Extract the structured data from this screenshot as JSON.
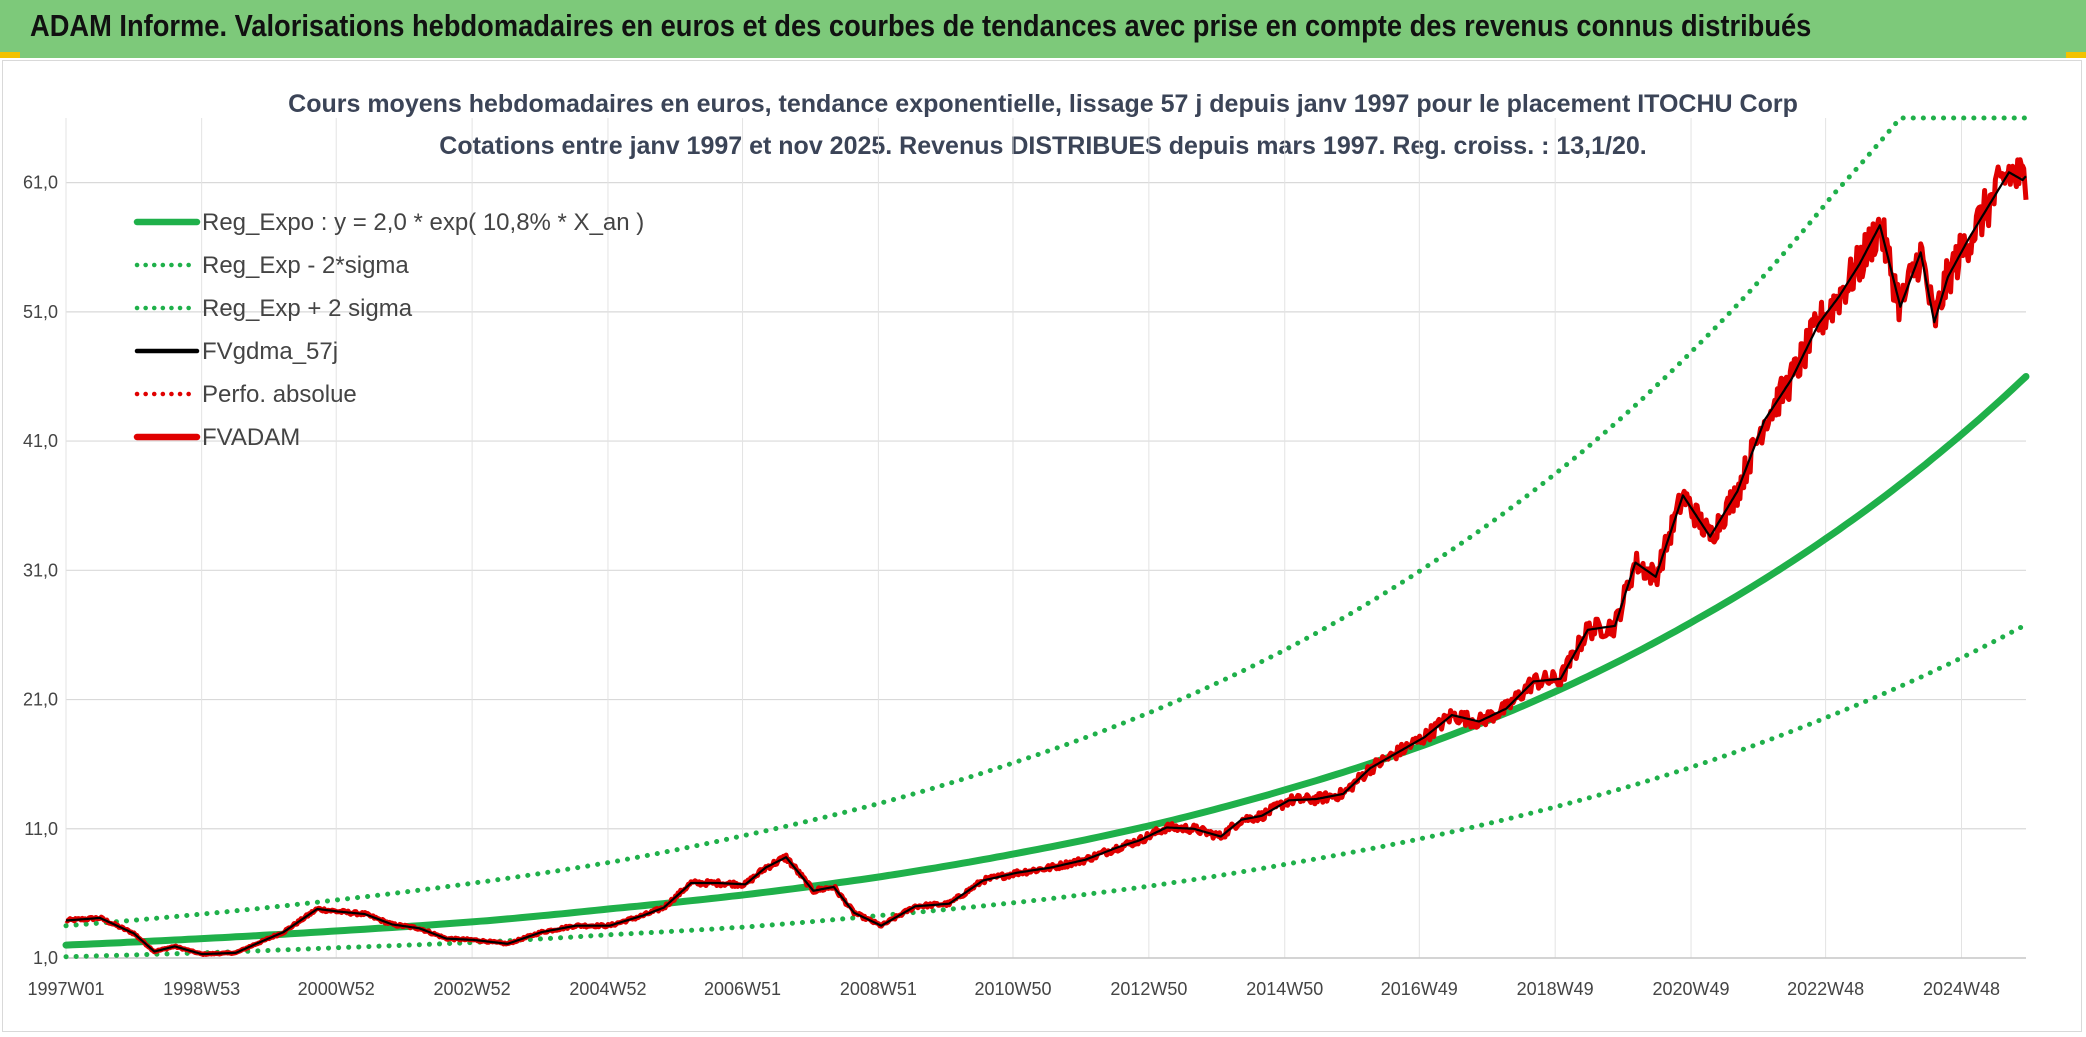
{
  "header": {
    "title": "ADAM Informe. Valorisations hebdomadaires en euros et des courbes de tendances avec prise en compte des revenus connus distribués",
    "background": "#7dc97a"
  },
  "chart_data": {
    "type": "line",
    "title_line1": "Cours moyens hebdomadaires en euros, tendance exponentielle, lissage 57 j depuis janv 1997 pour le placement ITOCHU Corp",
    "title_line2": "Cotations entre janv 1997 et nov 2025. Revenus DISTRIBUES depuis mars 1997. Reg. croiss. : 13,1/20.",
    "xlabel": "",
    "ylabel": "",
    "x_range": [
      1997.0,
      2025.85
    ],
    "ylim": [
      1.0,
      66.0
    ],
    "y_ticks": [
      "1,0",
      "11,0",
      "21,0",
      "31,0",
      "41,0",
      "51,0",
      "61,0"
    ],
    "x_ticks": [
      "1997W01",
      "1998W53",
      "2000W52",
      "2002W52",
      "2004W52",
      "2006W51",
      "2008W51",
      "2010W50",
      "2012W50",
      "2014W50",
      "2016W49",
      "2018W49",
      "2020W49",
      "2022W48",
      "2024W48"
    ],
    "grid": true,
    "legend_position": "top-left",
    "legend": [
      {
        "label": "Reg_Expo : y = 2,0 * exp( 10,8% *  X_an )",
        "color": "#1fb04a",
        "style": "solid-thick"
      },
      {
        "label": "Reg_Exp - 2*sigma",
        "color": "#1fb04a",
        "style": "dotted"
      },
      {
        "label": "Reg_Exp + 2 sigma",
        "color": "#1fb04a",
        "style": "dotted"
      },
      {
        "label": "FVgdma_57j",
        "color": "#000000",
        "style": "solid"
      },
      {
        "label": "Perfo. absolue",
        "color": "#e00000",
        "style": "dotted"
      },
      {
        "label": "FVADAM",
        "color": "#e00000",
        "style": "solid-thick"
      }
    ],
    "series": [
      {
        "name": "Reg_Expo : y = 2,0 * exp( 10,8% *  X_an )",
        "x": [
          1997.0,
          1999.0,
          2001.0,
          2003.0,
          2005.0,
          2007.0,
          2009.0,
          2011.0,
          2013.0,
          2015.0,
          2017.0,
          2019.0,
          2021.0,
          2023.0,
          2025.85
        ],
        "values": [
          2.0,
          2.5,
          3.1,
          3.8,
          4.8,
          5.9,
          7.3,
          9.1,
          11.3,
          14.1,
          17.5,
          21.8,
          27.2,
          33.8,
          46.0
        ]
      },
      {
        "name": "Reg_Exp - 2*sigma",
        "x": [
          1997.0,
          1999.0,
          2001.0,
          2003.0,
          2005.0,
          2007.0,
          2009.0,
          2011.0,
          2013.0,
          2015.0,
          2017.0,
          2019.0,
          2021.0,
          2023.0,
          2025.85
        ],
        "values": [
          1.1,
          1.4,
          1.8,
          2.2,
          2.8,
          3.4,
          4.3,
          5.3,
          6.6,
          8.3,
          10.3,
          12.8,
          15.9,
          19.8,
          26.8
        ]
      },
      {
        "name": "Reg_Exp + 2 sigma",
        "x": [
          1997.0,
          1999.0,
          2001.0,
          2003.0,
          2005.0,
          2007.0,
          2009.0,
          2011.0,
          2013.0,
          2015.0,
          2017.0,
          2019.0,
          2021.0,
          2023.0,
          2024.0,
          2025.85
        ],
        "values": [
          3.5,
          4.4,
          5.5,
          6.8,
          8.4,
          10.5,
          13.0,
          16.2,
          20.1,
          25.0,
          31.2,
          38.8,
          48.3,
          60.0,
          66.0,
          66.0
        ]
      },
      {
        "name": "FVADAM",
        "x": [
          1997.0,
          1997.5,
          1998.0,
          1998.3,
          1998.6,
          1999.0,
          1999.5,
          1999.8,
          2000.2,
          2000.7,
          2001.0,
          2001.4,
          2001.8,
          2002.2,
          2002.6,
          2003.0,
          2003.5,
          2004.0,
          2004.5,
          2005.0,
          2005.5,
          2005.8,
          2006.2,
          2006.6,
          2007.0,
          2007.3,
          2007.6,
          2008.0,
          2008.3,
          2008.6,
          2009.0,
          2009.5,
          2010.0,
          2010.5,
          2011.0,
          2011.5,
          2012.0,
          2012.5,
          2012.8,
          2013.2,
          2013.6,
          2014.0,
          2014.3,
          2014.6,
          2015.0,
          2015.4,
          2015.8,
          2016.2,
          2016.6,
          2017.0,
          2017.4,
          2017.8,
          2018.2,
          2018.6,
          2019.0,
          2019.4,
          2019.8,
          2020.1,
          2020.4,
          2020.8,
          2021.2,
          2021.6,
          2022.0,
          2022.4,
          2022.8,
          2023.1,
          2023.4,
          2023.7,
          2024.0,
          2024.3,
          2024.5,
          2024.7,
          2025.0,
          2025.3,
          2025.6,
          2025.8,
          2025.85
        ],
        "values": [
          3.9,
          4.1,
          2.9,
          1.5,
          1.9,
          1.3,
          1.4,
          2.1,
          3.0,
          4.8,
          4.6,
          4.4,
          3.6,
          3.3,
          2.5,
          2.4,
          2.1,
          3.0,
          3.5,
          3.5,
          4.3,
          4.9,
          6.8,
          6.8,
          6.7,
          8.0,
          8.8,
          6.2,
          6.5,
          4.5,
          3.5,
          5.0,
          5.2,
          7.0,
          7.6,
          8.0,
          8.6,
          9.6,
          10.1,
          11.1,
          11.0,
          10.4,
          11.7,
          12.0,
          13.2,
          13.3,
          13.7,
          15.7,
          16.9,
          18.1,
          19.8,
          19.3,
          20.3,
          22.4,
          22.6,
          26.4,
          26.7,
          31.6,
          30.5,
          36.8,
          33.6,
          37.1,
          42.6,
          45.8,
          50.1,
          52.2,
          54.7,
          57.7,
          51.4,
          55.6,
          50.2,
          53.7,
          56.6,
          59.2,
          61.8,
          61.2,
          61.5
        ]
      }
    ]
  }
}
